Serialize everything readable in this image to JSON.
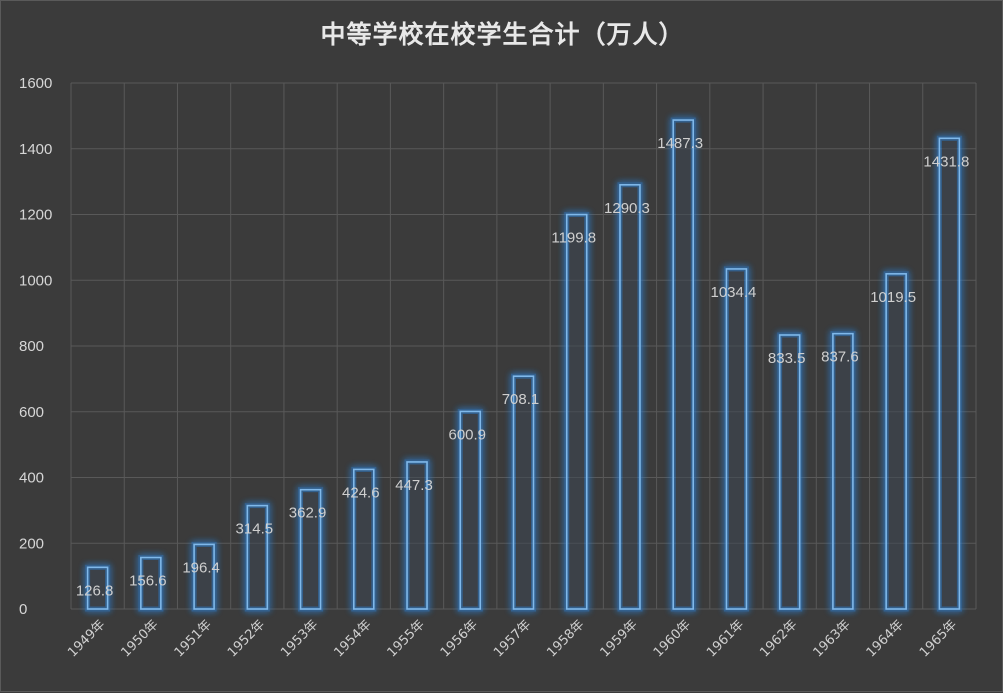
{
  "chart_data": {
    "type": "bar",
    "title": "中等学校在校学生合计（万人）",
    "xlabel": "",
    "ylabel": "",
    "ylim": [
      0,
      1600
    ],
    "yticks": [
      0,
      200,
      400,
      600,
      800,
      1000,
      1200,
      1400,
      1600
    ],
    "grid": true,
    "legend": "none",
    "categories": [
      "1949年",
      "1950年",
      "1951年",
      "1952年",
      "1953年",
      "1954年",
      "1955年",
      "1956年",
      "1957年",
      "1958年",
      "1959年",
      "1960年",
      "1961年",
      "1962年",
      "1963年",
      "1964年",
      "1965年"
    ],
    "values": [
      126.8,
      156.6,
      196.4,
      314.5,
      362.9,
      424.6,
      447.3,
      600.9,
      708.1,
      1199.8,
      1290.3,
      1487.3,
      1034.4,
      833.5,
      837.6,
      1019.5,
      1431.8
    ],
    "data_labels": [
      "126.8",
      "156.6",
      "196.4",
      "314.5",
      "362.9",
      "424.6",
      "447.3",
      "600.9",
      "708.1",
      "1199.8",
      "1290.3",
      "1487.3",
      "1034.4",
      "833.5",
      "837.6",
      "1019.5",
      "1431.8"
    ],
    "colors": {
      "background": "#3b3b3b",
      "grid": "#595959",
      "bar_stroke": "#7fb8ea",
      "bar_glow": "#2f7fd0",
      "bar_fill": "#3d4652"
    }
  }
}
